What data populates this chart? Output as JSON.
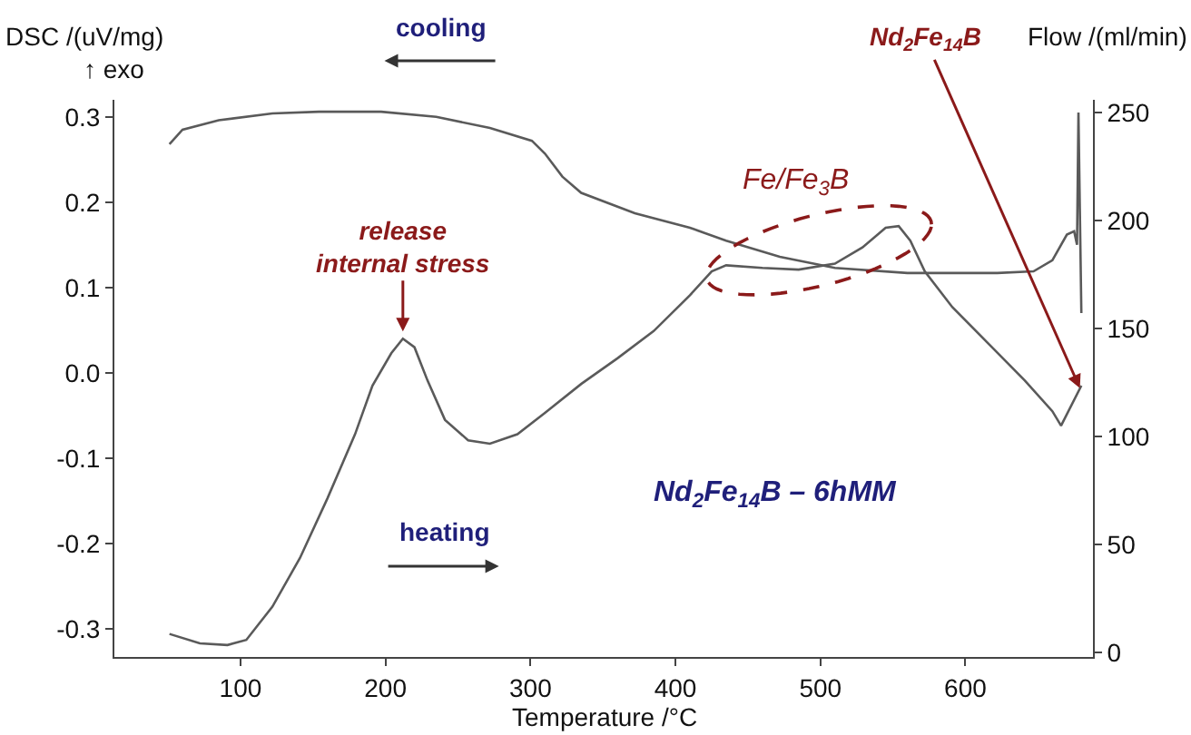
{
  "chart_data": {
    "type": "line",
    "xlabel": "Temperature /°C",
    "ylabel": "DSC /(uV/mg)",
    "y2label": "Flow /(ml/min)",
    "xlim": [
      13,
      688
    ],
    "xticks": [
      100,
      200,
      300,
      400,
      500,
      600
    ],
    "ylim": [
      -0.333,
      0.32
    ],
    "yticks": [
      -0.3,
      -0.2,
      -0.1,
      {
        "value": 0,
        "label": "0.0"
      },
      0.1,
      0.2,
      0.3
    ],
    "y2lim": [
      -2,
      256
    ],
    "y2ticks": [
      0,
      50,
      100,
      150,
      200,
      250
    ],
    "marker": "none",
    "line_style": "solid",
    "series": [
      {
        "color": "#5a5a5a",
        "x": [
          51,
          72,
          91,
          104,
          122,
          141,
          160,
          179,
          191,
          204,
          212,
          220,
          229,
          241,
          257,
          272,
          291,
          310,
          335,
          360,
          385,
          410,
          425,
          435,
          460,
          485,
          510,
          529,
          545,
          554,
          562,
          572,
          591,
          616,
          641,
          660,
          666,
          680
        ],
        "values": [
          -0.306,
          -0.317,
          -0.319,
          -0.313,
          -0.274,
          -0.217,
          -0.147,
          -0.072,
          -0.015,
          0.023,
          0.04,
          0.03,
          -0.009,
          -0.055,
          -0.079,
          -0.083,
          -0.072,
          -0.047,
          -0.013,
          0.017,
          0.049,
          0.091,
          0.119,
          0.126,
          0.123,
          0.121,
          0.128,
          0.147,
          0.17,
          0.172,
          0.155,
          0.119,
          0.077,
          0.034,
          -0.009,
          -0.045,
          -0.062,
          -0.015
        ]
      },
      {
        "color": "#5a5a5a",
        "x": [
          51,
          60,
          85,
          122,
          154,
          197,
          235,
          272,
          301,
          310,
          322,
          335,
          372,
          410,
          435,
          472,
          510,
          560,
          622,
          647,
          660,
          670,
          675,
          677,
          678,
          680
        ],
        "values": [
          0.268,
          0.285,
          0.296,
          0.304,
          0.306,
          0.306,
          0.3,
          0.287,
          0.272,
          0.257,
          0.23,
          0.211,
          0.187,
          0.17,
          0.155,
          0.136,
          0.123,
          0.117,
          0.117,
          0.119,
          0.132,
          0.162,
          0.166,
          0.15,
          0.305,
          0.07
        ]
      }
    ],
    "annotations": [
      "↑ exo",
      "cooling",
      "heating",
      {
        "text": "release internal stress",
        "x": 212,
        "y": 0.04
      },
      "Fe/Fe$_{3}$B",
      {
        "text": "Nd$_{2}$Fe$_{14}$B",
        "x": 679,
        "y": -0.018
      },
      "Nd$_{2}$Fe$_{14}$B – 6hMM"
    ]
  }
}
